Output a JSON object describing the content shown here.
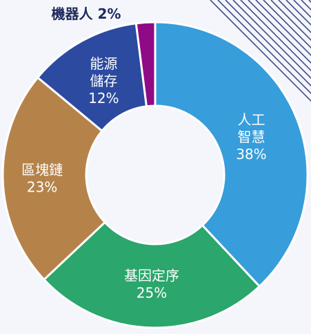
{
  "chart_data": {
    "type": "pie",
    "variant": "donut",
    "title": "",
    "slices": [
      {
        "name": "人工智慧",
        "lines": [
          "人工",
          "智慧"
        ],
        "value": 38,
        "label": "38%",
        "color": "#379ddb"
      },
      {
        "name": "基因定序",
        "lines": [
          "基因定序"
        ],
        "value": 25,
        "label": "25%",
        "color": "#2ba66c"
      },
      {
        "name": "區塊鏈",
        "lines": [
          "區塊鏈"
        ],
        "value": 23,
        "label": "23%",
        "color": "#b5834a"
      },
      {
        "name": "能源儲存",
        "lines": [
          "能源",
          "儲存"
        ],
        "value": 12,
        "label": "12%",
        "color": "#2b4aa0"
      },
      {
        "name": "機器人",
        "lines": [
          "機器人 2%"
        ],
        "value": 2,
        "label": "",
        "color": "#8f0a84"
      }
    ],
    "legend": "none",
    "decoration_color": "#3d4c86"
  }
}
